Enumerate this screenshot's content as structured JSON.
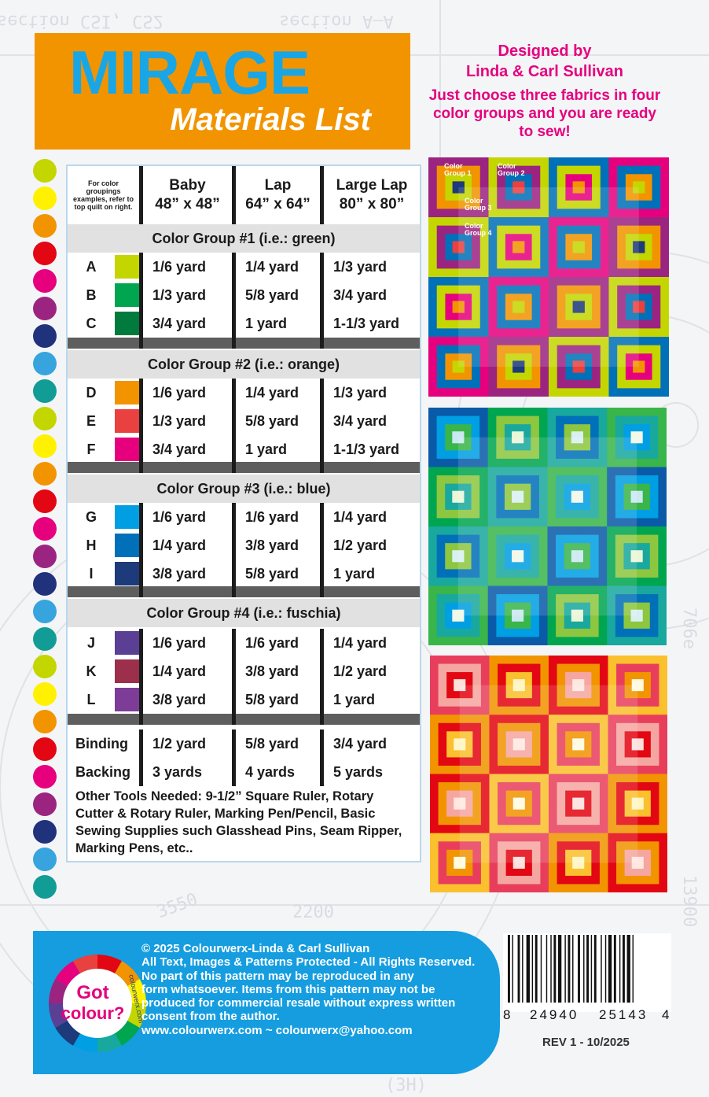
{
  "header": {
    "title": "MIRAGE",
    "subtitle": "Materials List"
  },
  "designer": {
    "line1": "Designed by",
    "line2": "Linda & Carl Sullivan",
    "tagline": "Just choose three fabrics in four color groups and you are ready to sew!"
  },
  "dots": [
    "#c4d600",
    "#fff100",
    "#f29400",
    "#e30613",
    "#e6007e",
    "#9b2481",
    "#20327c",
    "#38a4dd",
    "#119d96",
    "#c4d600",
    "#fff100",
    "#f29400",
    "#e30613",
    "#e6007e",
    "#9b2481",
    "#20327c",
    "#38a4dd",
    "#119d96",
    "#c4d600",
    "#fff100",
    "#f29400",
    "#e30613",
    "#e6007e",
    "#9b2481",
    "#20327c",
    "#38a4dd",
    "#119d96"
  ],
  "table": {
    "note": "For color groupings examples, refer to top quilt on right.",
    "columns": [
      {
        "name": "Baby",
        "size": "48” x 48”"
      },
      {
        "name": "Lap",
        "size": "64” x 64”"
      },
      {
        "name": "Large Lap",
        "size": "80” x 80”"
      }
    ],
    "groups": [
      {
        "title": "Color Group #1 (i.e.: green)",
        "rows": [
          {
            "label": "A",
            "color": "#c4d600",
            "baby": "1/6 yard",
            "lap": "1/4 yard",
            "large": "1/3 yard"
          },
          {
            "label": "B",
            "color": "#00a550",
            "baby": "1/3 yard",
            "lap": "5/8 yard",
            "large": "3/4 yard"
          },
          {
            "label": "C",
            "color": "#007a3d",
            "baby": "3/4  yard",
            "lap": "1 yard",
            "large": "1-1/3 yard"
          }
        ]
      },
      {
        "title": "Color Group #2 (i.e.: orange)",
        "rows": [
          {
            "label": "D",
            "color": "#f29400",
            "baby": "1/6 yard",
            "lap": "1/4 yard",
            "large": "1/3 yard"
          },
          {
            "label": "E",
            "color": "#e94040",
            "baby": "1/3 yard",
            "lap": "5/8 yard",
            "large": "3/4 yard"
          },
          {
            "label": "F",
            "color": "#e6007e",
            "baby": "3/4 yard",
            "lap": "1 yard",
            "large": "1-1/3 yard"
          }
        ]
      },
      {
        "title": "Color Group #3 (i.e.: blue)",
        "rows": [
          {
            "label": "G",
            "color": "#009fe3",
            "baby": "1/6 yard",
            "lap": "1/6 yard",
            "large": "1/4 yard"
          },
          {
            "label": "H",
            "color": "#0070b8",
            "baby": "1/4 yard",
            "lap": "3/8 yard",
            "large": "1/2 yard"
          },
          {
            "label": "I",
            "color": "#1d3a7a",
            "baby": "3/8 yard",
            "lap": "5/8 yard",
            "large": "1 yard"
          }
        ]
      },
      {
        "title": "Color Group #4 (i.e.: fuschia)",
        "rows": [
          {
            "label": "J",
            "color": "#5b3f95",
            "baby": "1/6 yard",
            "lap": "1/6 yard",
            "large": "1/4 yard"
          },
          {
            "label": "K",
            "color": "#9c2f4b",
            "baby": "1/4 yard",
            "lap": "3/8 yard",
            "large": "1/2 yard"
          },
          {
            "label": "L",
            "color": "#7d3c98",
            "baby": "3/8 yard",
            "lap": "5/8 yard",
            "large": "1 yard"
          }
        ]
      }
    ],
    "extras": [
      {
        "label": "Binding",
        "baby": "1/2 yard",
        "lap": "5/8 yard",
        "large": "3/4 yard"
      },
      {
        "label": "Backing",
        "baby": "3 yards",
        "lap": "4 yards",
        "large": "5 yards"
      }
    ],
    "tools": "Other Tools Needed:  9-1/2” Square Ruler, Rotary Cutter & Rotary Ruler, Marking Pen/Pencil,  Basic Sewing Supplies such Glasshead Pins, Seam Ripper, Marking Pens, etc.."
  },
  "quilt_labels": [
    "Color Group 1",
    "Color Group 2",
    "Color Group 3",
    "Color Group 4"
  ],
  "footer": {
    "logo_text_1": "Got",
    "logo_text_2": "colour?",
    "logo_side": "colourwerx.com",
    "lines": [
      "© 2025 Colourwerx-Linda & Carl Sullivan",
      "All Text, Images & Patterns Protected - All Rights Reserved.",
      "No part of this pattern may be reproduced  in any",
      "form whatsoever.   Items from this pattern may not be",
      "produced for commercial resale without express written",
      "consent from the author.",
      "www.colourwerx.com ~ colourwerx@yahoo.com"
    ]
  },
  "barcode": {
    "d1": "8",
    "d2": "24940",
    "d3": "25143",
    "d4": "4"
  },
  "revision": "REV 1 - 10/2025",
  "blueprint": {
    "t1": "section  CSI,  CS2",
    "t2": "section  A–A",
    "t3": "2200",
    "t4": "3550",
    "t5": "13900",
    "t6": "706e",
    "t7": "(3H)"
  }
}
